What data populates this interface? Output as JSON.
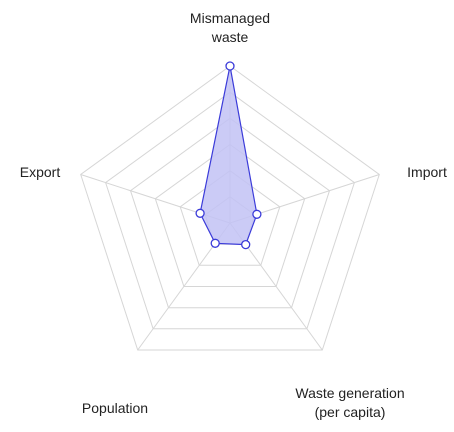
{
  "chart_data": {
    "type": "radar",
    "title": "",
    "axes": [
      {
        "label_lines": [
          "Mismanaged",
          "waste"
        ]
      },
      {
        "label_lines": [
          "Import"
        ]
      },
      {
        "label_lines": [
          "Waste generation",
          "(per capita)"
        ]
      },
      {
        "label_lines": [
          "Population"
        ]
      },
      {
        "label_lines": [
          "Export"
        ]
      }
    ],
    "rings": 6,
    "range": [
      0,
      1
    ],
    "series": [
      {
        "values": [
          1.0,
          0.18,
          0.17,
          0.16,
          0.2
        ],
        "stroke_color": "#3b3bd9",
        "fill_color": "#c2c2f5"
      }
    ]
  }
}
